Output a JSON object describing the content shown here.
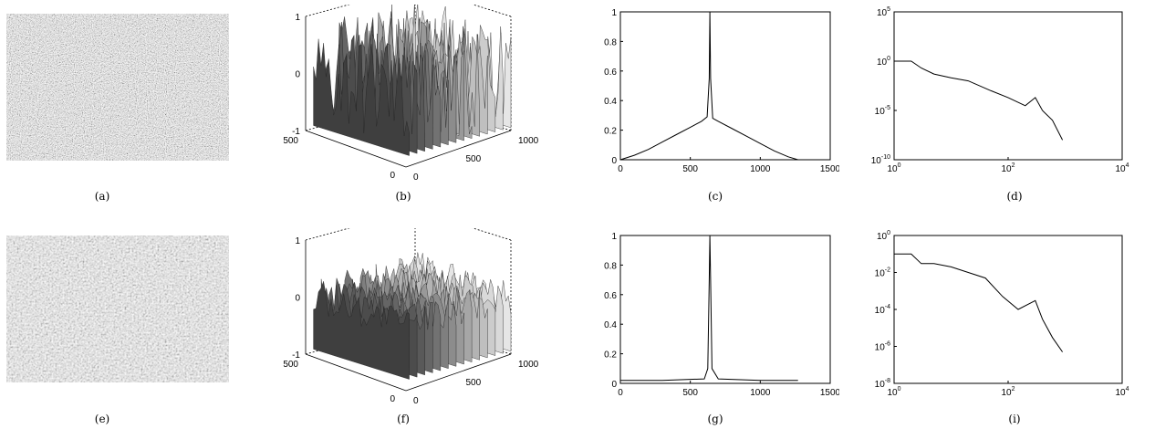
{
  "captions": [
    "(a)",
    "(b)",
    "(c)",
    "(d)",
    "(e)",
    "(f)",
    "(g)",
    "(d)",
    "(i)"
  ],
  "colors": {
    "axis": "#000000",
    "line": "#000000",
    "surface_light": "#e8e8e8",
    "surface_dark": "#333333"
  },
  "chart_data": [
    {
      "id": "b",
      "type": "surface3d",
      "x_ticks": [
        "0",
        "500",
        "1000"
      ],
      "y_ticks": [
        "0",
        "500"
      ],
      "z_ticks": [
        "-1",
        "0",
        "1"
      ],
      "zlim": [
        -1,
        1
      ],
      "amplitude": 0.9
    },
    {
      "id": "c",
      "type": "line",
      "xlim": [
        0,
        1500
      ],
      "ylim": [
        0,
        1
      ],
      "x_ticks": [
        "0",
        "500",
        "1000",
        "1500"
      ],
      "y_ticks": [
        "0",
        "0.2",
        "0.4",
        "0.6",
        "0.8",
        "1"
      ],
      "points": [
        [
          0,
          0
        ],
        [
          100,
          0.03
        ],
        [
          200,
          0.07
        ],
        [
          300,
          0.12
        ],
        [
          400,
          0.17
        ],
        [
          500,
          0.22
        ],
        [
          580,
          0.26
        ],
        [
          620,
          0.29
        ],
        [
          635,
          0.55
        ],
        [
          640,
          1.0
        ],
        [
          645,
          0.55
        ],
        [
          660,
          0.28
        ],
        [
          700,
          0.26
        ],
        [
          800,
          0.21
        ],
        [
          900,
          0.16
        ],
        [
          1000,
          0.11
        ],
        [
          1100,
          0.06
        ],
        [
          1200,
          0.02
        ],
        [
          1270,
          0
        ]
      ]
    },
    {
      "id": "d",
      "type": "line",
      "scale": "log-log",
      "xlim": [
        1,
        10000
      ],
      "ylim": [
        1e-10,
        100000.0
      ],
      "x_ticks": [
        "10^0",
        "10^2",
        "10^4"
      ],
      "y_ticks": [
        "10^-10",
        "10^-5",
        "10^0",
        "10^5"
      ],
      "points": [
        [
          1,
          1
        ],
        [
          2,
          1
        ],
        [
          3,
          0.2
        ],
        [
          5,
          0.05
        ],
        [
          10,
          0.02
        ],
        [
          20,
          0.01
        ],
        [
          50,
          0.001
        ],
        [
          100,
          0.0002
        ],
        [
          200,
          3e-05
        ],
        [
          300,
          0.0002
        ],
        [
          400,
          1e-05
        ],
        [
          600,
          1e-06
        ],
        [
          900,
          1e-08
        ]
      ]
    },
    {
      "id": "f",
      "type": "surface3d",
      "x_ticks": [
        "0",
        "500",
        "1000"
      ],
      "y_ticks": [
        "0",
        "500"
      ],
      "z_ticks": [
        "-1",
        "0",
        "1"
      ],
      "zlim": [
        -1,
        1
      ],
      "amplitude": 0.3
    },
    {
      "id": "g",
      "type": "line",
      "xlim": [
        0,
        1500
      ],
      "ylim": [
        0,
        1
      ],
      "x_ticks": [
        "0",
        "500",
        "1000",
        "1500"
      ],
      "y_ticks": [
        "0",
        "0.2",
        "0.4",
        "0.6",
        "0.8",
        "1"
      ],
      "points": [
        [
          0,
          0.02
        ],
        [
          300,
          0.02
        ],
        [
          600,
          0.03
        ],
        [
          625,
          0.1
        ],
        [
          635,
          0.7
        ],
        [
          640,
          1.0
        ],
        [
          645,
          0.7
        ],
        [
          655,
          0.1
        ],
        [
          700,
          0.03
        ],
        [
          1000,
          0.02
        ],
        [
          1270,
          0.02
        ]
      ]
    },
    {
      "id": "i",
      "type": "line",
      "scale": "log-log",
      "xlim": [
        1,
        10000
      ],
      "ylim": [
        1e-08,
        1
      ],
      "x_ticks": [
        "10^0",
        "10^2",
        "10^4"
      ],
      "y_ticks": [
        "10^-8",
        "10^-6",
        "10^-4",
        "10^-2",
        "10^0"
      ],
      "points": [
        [
          1,
          0.1
        ],
        [
          2,
          0.1
        ],
        [
          3,
          0.03
        ],
        [
          5,
          0.03
        ],
        [
          10,
          0.02
        ],
        [
          20,
          0.01
        ],
        [
          40,
          0.005
        ],
        [
          80,
          0.0005
        ],
        [
          150,
          0.0001
        ],
        [
          300,
          0.0003
        ],
        [
          400,
          3e-05
        ],
        [
          600,
          3e-06
        ],
        [
          900,
          5e-07
        ]
      ]
    }
  ]
}
